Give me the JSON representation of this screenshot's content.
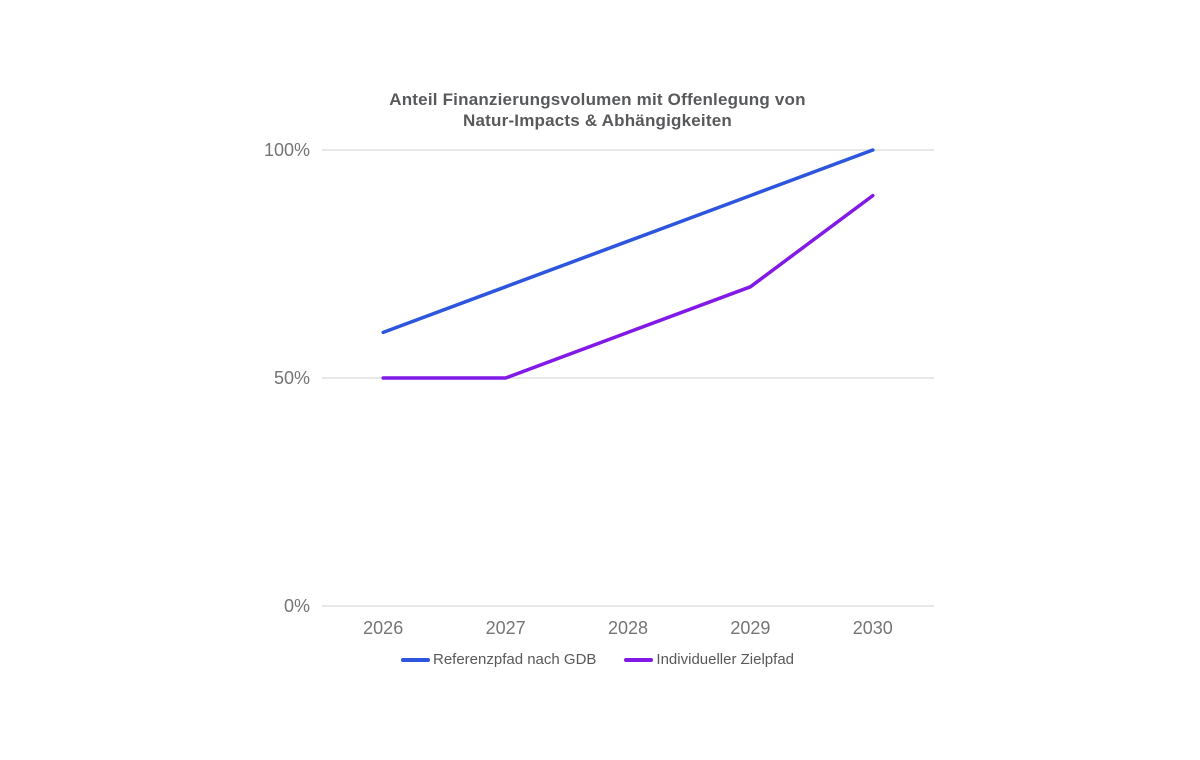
{
  "chart_data": {
    "type": "line",
    "title": "Anteil Finanzierungsvolumen mit Offenlegung von\nNatur-Impacts & Abhängigkeiten",
    "categories": [
      "2026",
      "2027",
      "2028",
      "2029",
      "2030"
    ],
    "series": [
      {
        "name": "Referenzpfad nach GDB",
        "color": "#2d55dd",
        "values": [
          60,
          70,
          80,
          90,
          100
        ]
      },
      {
        "name": "Individueller Zielpfad",
        "color": "#8219e6",
        "values": [
          50,
          50,
          60,
          70,
          90
        ]
      }
    ],
    "yticks": [
      {
        "value": 100,
        "label": "100%"
      },
      {
        "value": 50,
        "label": "50%"
      },
      {
        "value": 0,
        "label": "0%"
      }
    ],
    "xlabel": "",
    "ylabel": "",
    "ylim": [
      0,
      100
    ],
    "unit": "%",
    "grid": true,
    "legend_position": "bottom"
  },
  "colors": {
    "background": "#ffffff",
    "title_text": "#58595b",
    "tick_text": "#757575",
    "legend_text": "#595959",
    "gridline": "#e8e8e8"
  }
}
